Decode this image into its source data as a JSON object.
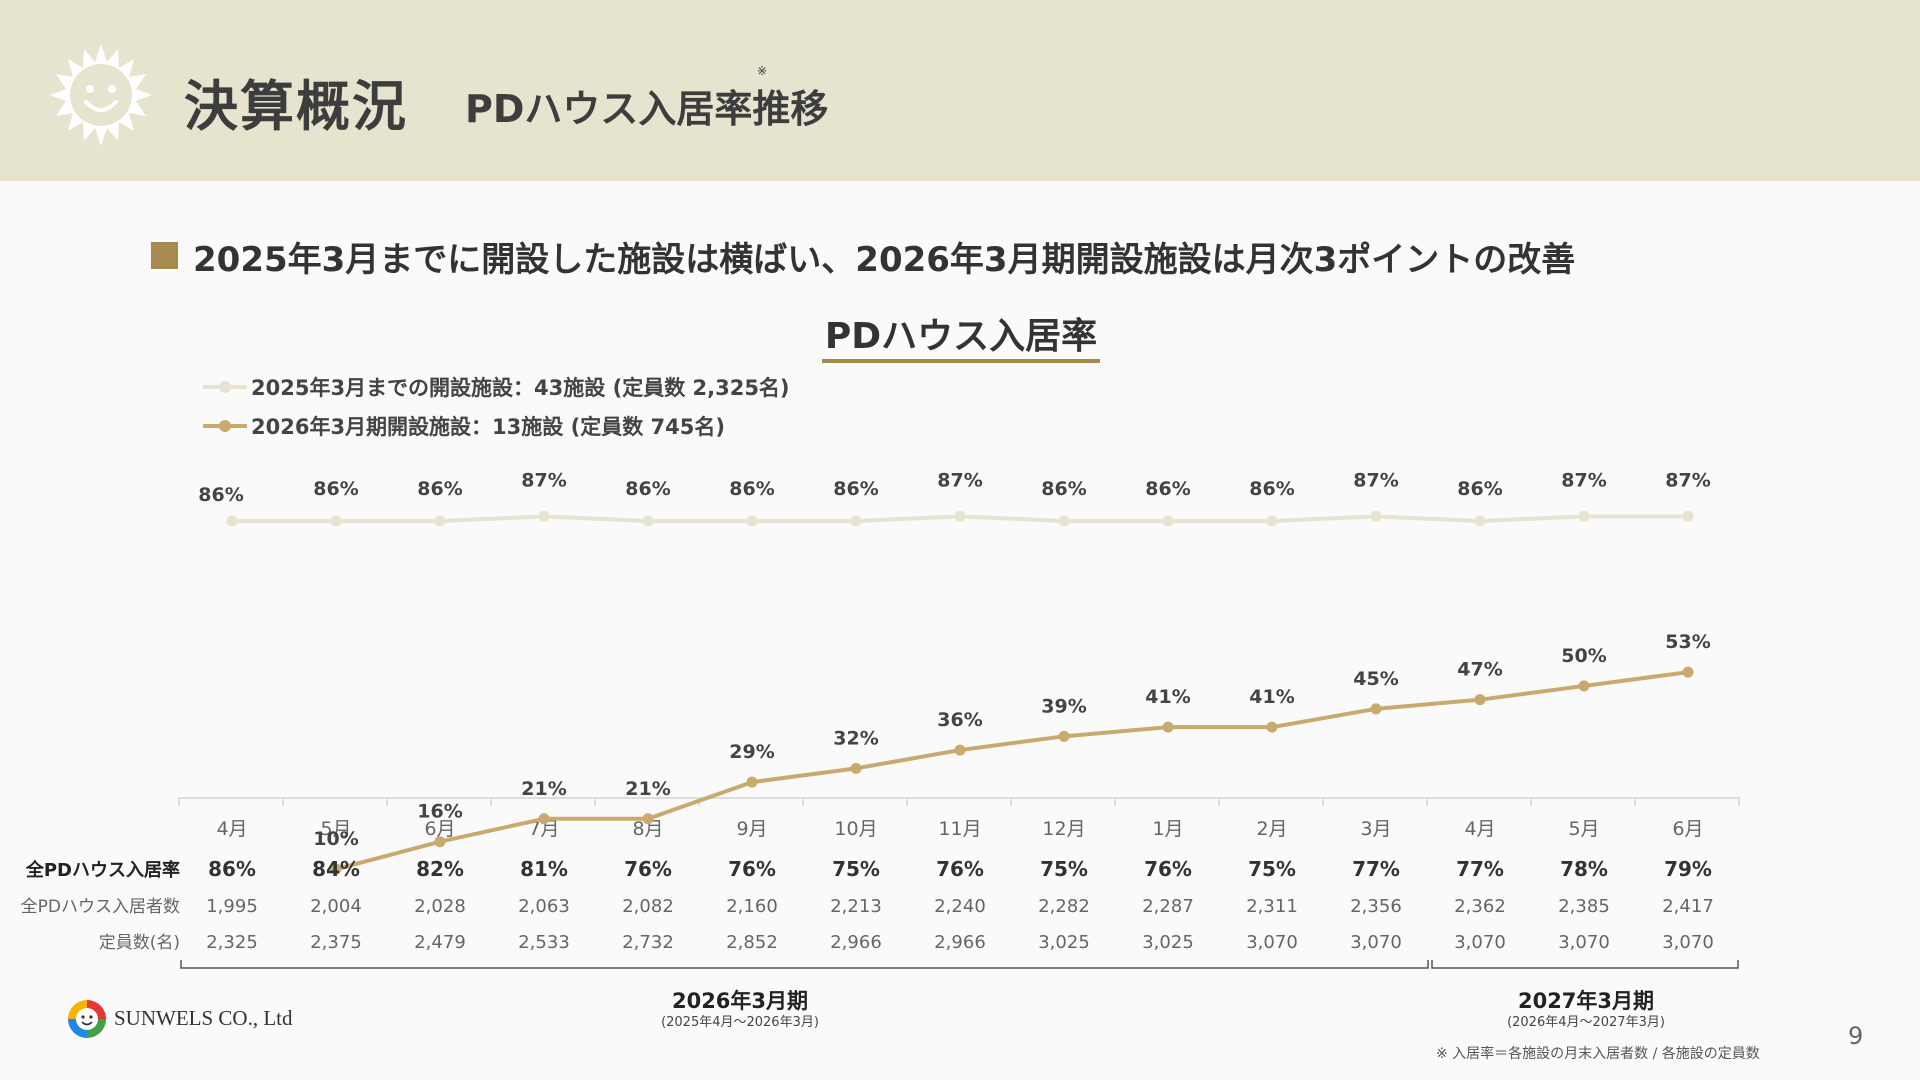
{
  "header": {
    "title": "決算概況",
    "subtitle": "PDハウス入居率推移",
    "note_mark": "※"
  },
  "headline": "2025年3月までに開設した施設は横ばい、2026年3月期開設施設は月次3ポイントの改善",
  "legend": {
    "series1": "2025年3月までの開設施設：43施設 (定員数 2,325名)",
    "series2": "2026年3月期開設施設：13施設 (定員数 745名)"
  },
  "colors": {
    "header_bg": "#e6e3cf",
    "accent": "#a68a4e",
    "series1": "#e6e3d0",
    "series2": "#c9a96e"
  },
  "chart_data": {
    "type": "line",
    "title": "PDハウス入居率",
    "categories": [
      "4月",
      "5月",
      "6月",
      "7月",
      "8月",
      "9月",
      "10月",
      "11月",
      "12月",
      "1月",
      "2月",
      "3月",
      "4月",
      "5月",
      "6月"
    ],
    "series": [
      {
        "name": "2025年3月までの開設施設：43施設 (定員数 2,325名)",
        "values": [
          86,
          86,
          86,
          87,
          86,
          86,
          86,
          87,
          86,
          86,
          86,
          87,
          86,
          87,
          87
        ],
        "labels": [
          "86%",
          "86%",
          "86%",
          "87%",
          "86%",
          "86%",
          "86%",
          "87%",
          "86%",
          "86%",
          "86%",
          "87%",
          "86%",
          "87%",
          "87%"
        ]
      },
      {
        "name": "2026年3月期開設施設：13施設 (定員数 745名)",
        "values": [
          null,
          10,
          16,
          21,
          21,
          29,
          32,
          36,
          39,
          41,
          41,
          45,
          47,
          50,
          53
        ],
        "labels": [
          "",
          "10%",
          "16%",
          "21%",
          "21%",
          "29%",
          "32%",
          "36%",
          "39%",
          "41%",
          "41%",
          "45%",
          "47%",
          "50%",
          "53%"
        ]
      }
    ],
    "ylabel": "",
    "xlabel": "",
    "legend": "top-left",
    "grid": false
  },
  "table": {
    "rows": [
      {
        "label": "全PDハウス入居率",
        "bold": true,
        "values": [
          "86%",
          "84%",
          "82%",
          "81%",
          "76%",
          "76%",
          "75%",
          "76%",
          "75%",
          "76%",
          "75%",
          "77%",
          "77%",
          "78%",
          "79%"
        ]
      },
      {
        "label": "全PDハウス入居者数",
        "bold": false,
        "values": [
          "1,995",
          "2,004",
          "2,028",
          "2,063",
          "2,082",
          "2,160",
          "2,213",
          "2,240",
          "2,282",
          "2,287",
          "2,311",
          "2,356",
          "2,362",
          "2,385",
          "2,417"
        ]
      },
      {
        "label": "定員数(名)",
        "bold": false,
        "values": [
          "2,325",
          "2,375",
          "2,479",
          "2,533",
          "2,732",
          "2,852",
          "2,966",
          "2,966",
          "3,025",
          "3,025",
          "3,070",
          "3,070",
          "3,070",
          "3,070",
          "3,070"
        ]
      }
    ]
  },
  "periods": [
    {
      "label": "2026年3月期",
      "sub": "(2025年4月～2026年3月)"
    },
    {
      "label": "2027年3月期",
      "sub": "(2026年4月～2027年3月)"
    }
  ],
  "company": "SUNWELS CO., Ltd",
  "footnote": "※ 入居率＝各施設の月末入居者数 / 各施設の定員数",
  "page_number": "9"
}
